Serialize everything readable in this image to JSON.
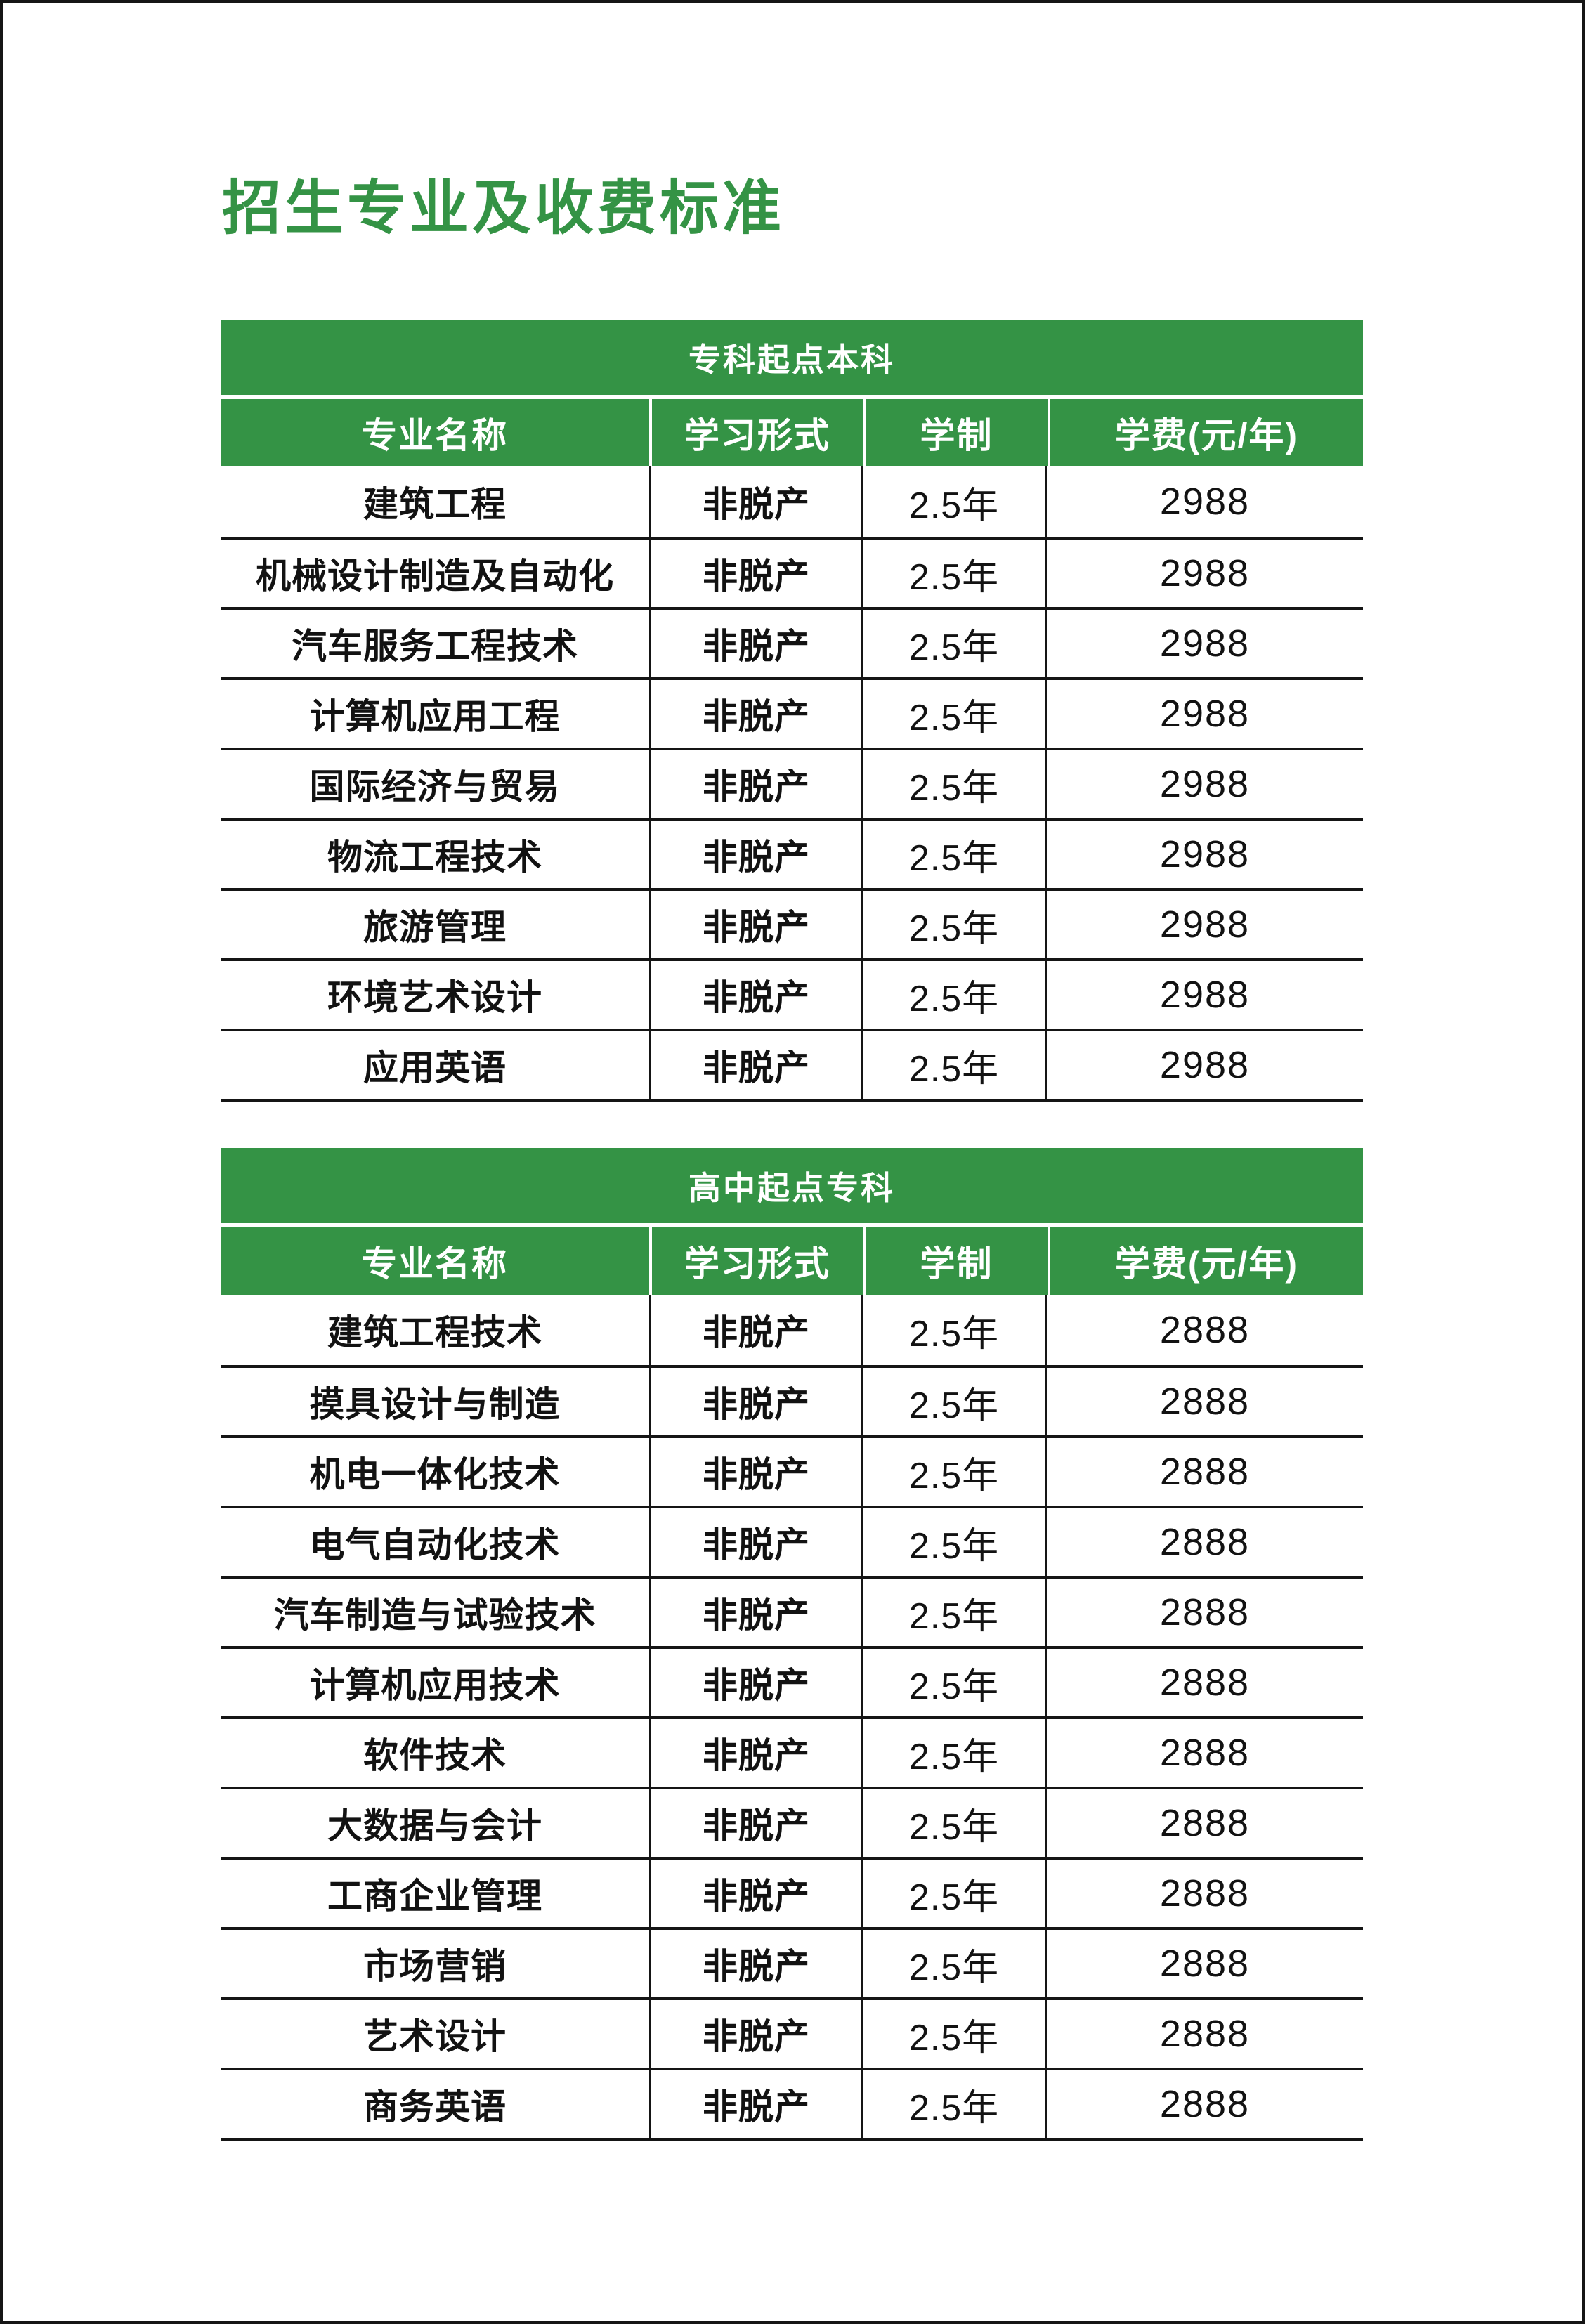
{
  "page": {
    "title": "招生专业及收费标准"
  },
  "colors": {
    "accent_green": "#349345",
    "text_black": "#121212",
    "background": "#ffffff"
  },
  "tables": [
    {
      "banner": "专科起点本科",
      "columns": [
        "专业名称",
        "学习形式",
        "学制",
        "学费(元/年)"
      ],
      "rows": [
        [
          "建筑工程",
          "非脱产",
          "2.5年",
          "2988"
        ],
        [
          "机械设计制造及自动化",
          "非脱产",
          "2.5年",
          "2988"
        ],
        [
          "汽车服务工程技术",
          "非脱产",
          "2.5年",
          "2988"
        ],
        [
          "计算机应用工程",
          "非脱产",
          "2.5年",
          "2988"
        ],
        [
          "国际经济与贸易",
          "非脱产",
          "2.5年",
          "2988"
        ],
        [
          "物流工程技术",
          "非脱产",
          "2.5年",
          "2988"
        ],
        [
          "旅游管理",
          "非脱产",
          "2.5年",
          "2988"
        ],
        [
          "环境艺术设计",
          "非脱产",
          "2.5年",
          "2988"
        ],
        [
          "应用英语",
          "非脱产",
          "2.5年",
          "2988"
        ]
      ]
    },
    {
      "banner": "高中起点专科",
      "columns": [
        "专业名称",
        "学习形式",
        "学制",
        "学费(元/年)"
      ],
      "rows": [
        [
          "建筑工程技术",
          "非脱产",
          "2.5年",
          "2888"
        ],
        [
          "摸具设计与制造",
          "非脱产",
          "2.5年",
          "2888"
        ],
        [
          "机电一体化技术",
          "非脱产",
          "2.5年",
          "2888"
        ],
        [
          "电气自动化技术",
          "非脱产",
          "2.5年",
          "2888"
        ],
        [
          "汽车制造与试验技术",
          "非脱产",
          "2.5年",
          "2888"
        ],
        [
          "计算机应用技术",
          "非脱产",
          "2.5年",
          "2888"
        ],
        [
          "软件技术",
          "非脱产",
          "2.5年",
          "2888"
        ],
        [
          "大数据与会计",
          "非脱产",
          "2.5年",
          "2888"
        ],
        [
          "工商企业管理",
          "非脱产",
          "2.5年",
          "2888"
        ],
        [
          "市场营销",
          "非脱产",
          "2.5年",
          "2888"
        ],
        [
          "艺术设计",
          "非脱产",
          "2.5年",
          "2888"
        ],
        [
          "商务英语",
          "非脱产",
          "2.5年",
          "2888"
        ]
      ]
    }
  ]
}
